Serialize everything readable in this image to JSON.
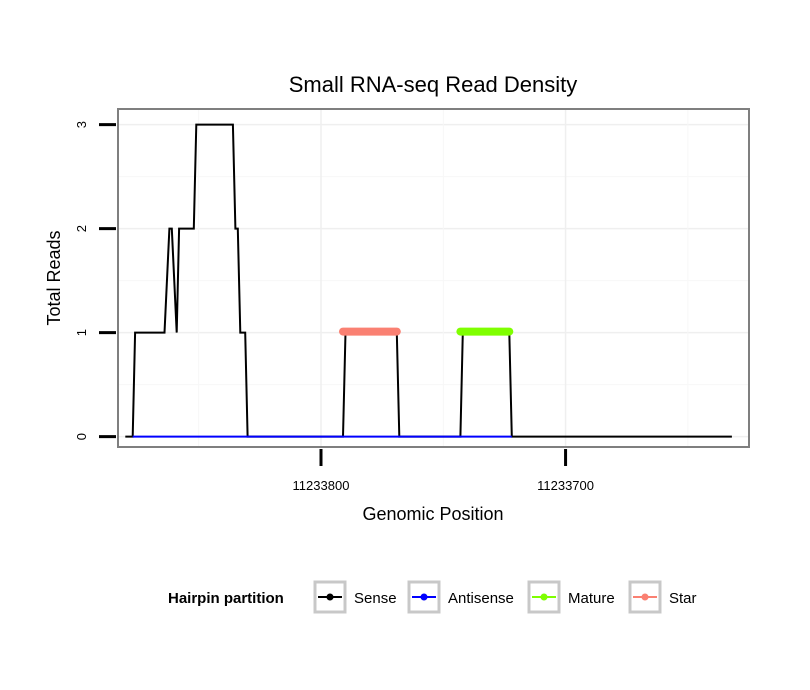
{
  "chart_data": {
    "type": "line",
    "title": "Small RNA-seq Read Density",
    "xlabel": "Genomic Position",
    "ylabel": "Total Reads",
    "x_reversed": true,
    "xlim": [
      11233883,
      11233625
    ],
    "ylim": [
      -0.1,
      3.15
    ],
    "x_ticks": [
      11233800,
      11233700
    ],
    "x_tick_labels": [
      "11233800",
      "11233700"
    ],
    "y_ticks": [
      0,
      1,
      2,
      3
    ],
    "y_tick_labels": [
      "0",
      "1",
      "2",
      "3"
    ],
    "grid": true,
    "legend": {
      "title": "Hairpin partition",
      "position": "bottom",
      "entries": [
        {
          "name": "Sense",
          "color": "#000000"
        },
        {
          "name": "Antisense",
          "color": "#0000FF"
        },
        {
          "name": "Mature",
          "color": "#7FFF00"
        },
        {
          "name": "Star",
          "color": "#FA8072"
        }
      ]
    },
    "series": [
      {
        "name": "Sense",
        "color": "#000000",
        "width": "thin",
        "points": [
          [
            11233880,
            0
          ],
          [
            11233877,
            0
          ],
          [
            11233876,
            1
          ],
          [
            11233864,
            1
          ],
          [
            11233862,
            2
          ],
          [
            11233861,
            2
          ],
          [
            11233859,
            1
          ],
          [
            11233858,
            2
          ],
          [
            11233852,
            2
          ],
          [
            11233851,
            3
          ],
          [
            11233836,
            3
          ],
          [
            11233835,
            2
          ],
          [
            11233834,
            2
          ],
          [
            11233833,
            1
          ],
          [
            11233831,
            1
          ],
          [
            11233830,
            0
          ],
          [
            11233791,
            0
          ],
          [
            11233790,
            1
          ],
          [
            11233769,
            1
          ],
          [
            11233768,
            0
          ],
          [
            11233743,
            0
          ],
          [
            11233742,
            1
          ],
          [
            11233723,
            1
          ],
          [
            11233722,
            0
          ],
          [
            11233632,
            0
          ]
        ]
      },
      {
        "name": "Antisense",
        "color": "#0000FF",
        "width": "thin",
        "points": [
          [
            11233877,
            0
          ],
          [
            11233830,
            0
          ],
          [
            11233791,
            0
          ],
          [
            11233768,
            0
          ],
          [
            11233743,
            0
          ],
          [
            11233722,
            0
          ]
        ]
      },
      {
        "name": "Mature",
        "color": "#7FFF00",
        "width": "thick",
        "points": [
          [
            11233743,
            1.01
          ],
          [
            11233723,
            1.01
          ]
        ]
      },
      {
        "name": "Star",
        "color": "#FA8072",
        "width": "thick",
        "points": [
          [
            11233791,
            1.01
          ],
          [
            11233769,
            1.01
          ]
        ]
      }
    ]
  }
}
